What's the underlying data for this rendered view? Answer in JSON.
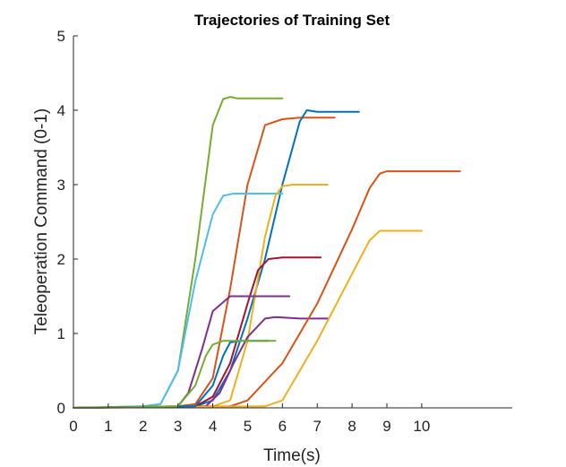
{
  "chart_data": {
    "type": "line",
    "title": "Trajectories of Training Set",
    "xlabel": "Time(s)",
    "ylabel": "Teleoperation Command (0-1)",
    "xlim": [
      0,
      12.6
    ],
    "ylim": [
      0,
      5
    ],
    "xticks": [
      0,
      1,
      2,
      3,
      4,
      5,
      6,
      7,
      8,
      9,
      10
    ],
    "yticks": [
      0,
      1,
      2,
      3,
      4,
      5
    ],
    "grid": false,
    "legend": "none",
    "series": [
      {
        "color": "#77AC30",
        "x": [
          0,
          2.0,
          2.5,
          3.0,
          3.5,
          4.0,
          4.3,
          4.5,
          4.7,
          6.0
        ],
        "y": [
          0,
          0.02,
          0.05,
          0.5,
          2.0,
          3.8,
          4.15,
          4.18,
          4.16,
          4.16
        ]
      },
      {
        "color": "#D95319",
        "x": [
          0,
          3.0,
          3.5,
          4.0,
          4.5,
          5.0,
          5.5,
          6.0,
          6.5,
          7.5
        ],
        "y": [
          0,
          0.02,
          0.05,
          0.4,
          1.6,
          3.0,
          3.8,
          3.88,
          3.9,
          3.9
        ]
      },
      {
        "color": "#0072BD",
        "x": [
          0,
          3.5,
          4.0,
          4.5,
          5.0,
          5.5,
          6.0,
          6.5,
          6.7,
          7.0,
          8.2
        ],
        "y": [
          0,
          0.02,
          0.1,
          0.5,
          1.2,
          2.0,
          3.0,
          3.85,
          4.0,
          3.98,
          3.98
        ]
      },
      {
        "color": "#4DBEEE",
        "x": [
          0,
          2.0,
          2.5,
          3.0,
          3.5,
          4.0,
          4.3,
          4.6,
          6.0
        ],
        "y": [
          0,
          0.02,
          0.05,
          0.5,
          1.7,
          2.6,
          2.85,
          2.88,
          2.88
        ]
      },
      {
        "color": "#EDB120",
        "x": [
          0,
          4.0,
          4.5,
          5.0,
          5.5,
          5.8,
          6.0,
          6.3,
          7.3
        ],
        "y": [
          0,
          0.02,
          0.1,
          0.9,
          2.3,
          2.85,
          2.98,
          3.0,
          3.0
        ]
      },
      {
        "color": "#A2142F",
        "x": [
          0,
          3.5,
          4.0,
          4.5,
          5.0,
          5.3,
          5.6,
          6.0,
          7.1
        ],
        "y": [
          0,
          0.02,
          0.15,
          0.6,
          1.4,
          1.85,
          2.0,
          2.02,
          2.02
        ]
      },
      {
        "color": "#7E2F8E",
        "x": [
          0,
          3.0,
          3.3,
          3.7,
          4.0,
          4.5,
          5.0,
          6.2
        ],
        "y": [
          0,
          0.02,
          0.2,
          0.8,
          1.3,
          1.5,
          1.5,
          1.5
        ]
      },
      {
        "color": "#7E2F8E",
        "x": [
          0,
          3.8,
          4.2,
          4.6,
          5.0,
          5.5,
          5.8,
          6.5,
          7.3
        ],
        "y": [
          0,
          0.02,
          0.2,
          0.6,
          0.95,
          1.2,
          1.22,
          1.2,
          1.2
        ]
      },
      {
        "color": "#D95319",
        "x": [
          0,
          4.5,
          5.0,
          6.0,
          7.0,
          8.0,
          8.5,
          8.8,
          9.0,
          11.1
        ],
        "y": [
          0,
          0.02,
          0.1,
          0.6,
          1.4,
          2.4,
          2.95,
          3.15,
          3.18,
          3.18
        ]
      },
      {
        "color": "#EDB120",
        "x": [
          0,
          5.5,
          6.0,
          7.0,
          8.0,
          8.5,
          8.8,
          9.0,
          10.0
        ],
        "y": [
          0,
          0.02,
          0.1,
          0.9,
          1.8,
          2.25,
          2.38,
          2.38,
          2.38
        ]
      },
      {
        "color": "#0072BD",
        "x": [
          0,
          3.5,
          4.0,
          4.3,
          4.5,
          4.8,
          5.6
        ],
        "y": [
          0,
          0.02,
          0.3,
          0.7,
          0.88,
          0.9,
          0.9
        ]
      },
      {
        "color": "#77AC30",
        "x": [
          0,
          3.0,
          3.5,
          3.8,
          4.0,
          4.3,
          5.8
        ],
        "y": [
          0,
          0.02,
          0.3,
          0.7,
          0.85,
          0.9,
          0.9
        ]
      }
    ]
  }
}
